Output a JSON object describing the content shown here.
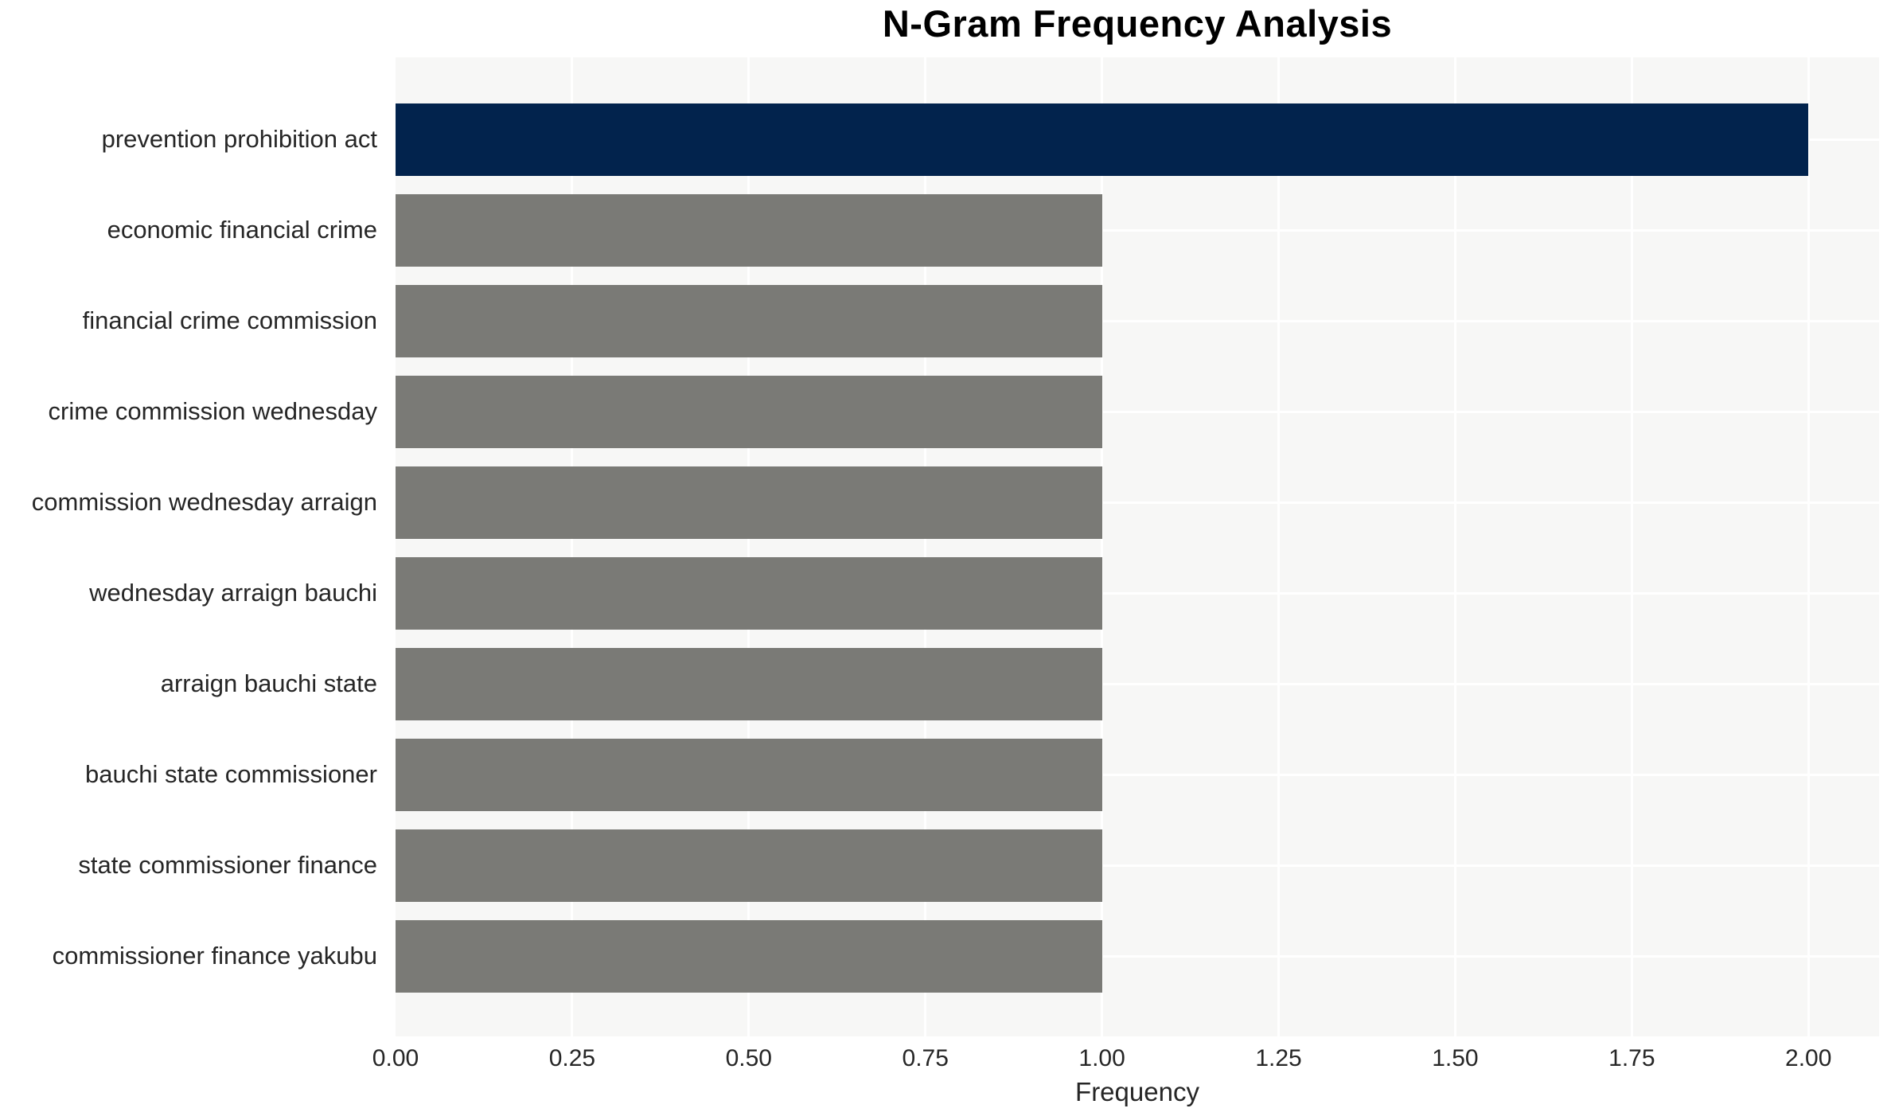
{
  "chart_data": {
    "type": "bar",
    "orientation": "horizontal",
    "title": "N-Gram Frequency Analysis",
    "xlabel": "Frequency",
    "ylabel": "",
    "categories": [
      "prevention prohibition act",
      "economic financial crime",
      "financial crime commission",
      "crime commission wednesday",
      "commission wednesday arraign",
      "wednesday arraign bauchi",
      "arraign bauchi state",
      "bauchi state commissioner",
      "state commissioner finance",
      "commissioner finance yakubu"
    ],
    "values": [
      2,
      1,
      1,
      1,
      1,
      1,
      1,
      1,
      1,
      1
    ],
    "xlim": [
      0,
      2.1
    ],
    "xticks": [
      {
        "value": 0.0,
        "label": "0.00"
      },
      {
        "value": 0.25,
        "label": "0.25"
      },
      {
        "value": 0.5,
        "label": "0.50"
      },
      {
        "value": 0.75,
        "label": "0.75"
      },
      {
        "value": 1.0,
        "label": "1.00"
      },
      {
        "value": 1.25,
        "label": "1.25"
      },
      {
        "value": 1.5,
        "label": "1.50"
      },
      {
        "value": 1.75,
        "label": "1.75"
      },
      {
        "value": 2.0,
        "label": "2.00"
      }
    ],
    "grid": true,
    "legend_position": "none",
    "styles": {
      "bar_color_default": "#7a7a76",
      "bar_color_highlight": "#02234d",
      "highlight_index": 0,
      "plot_background": "#f7f7f6",
      "grid_color": "#ffffff",
      "figure_background": "#ffffff",
      "text_color": "#262626",
      "title_color": "#000000"
    }
  }
}
